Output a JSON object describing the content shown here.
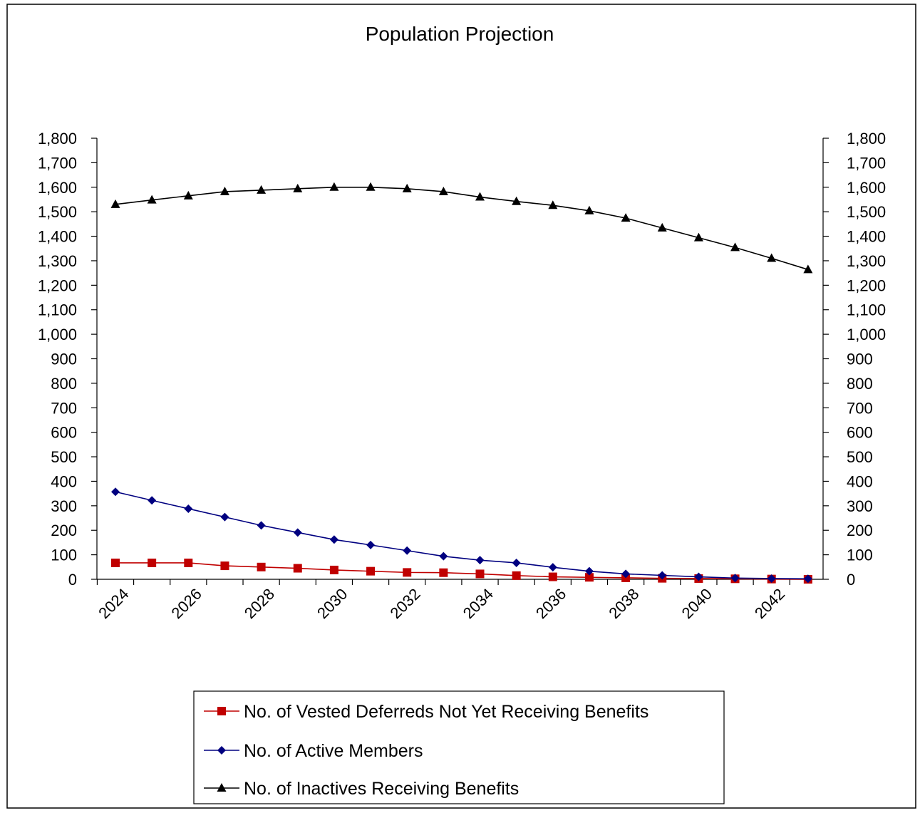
{
  "chart_data": {
    "type": "line",
    "title": "Population Projection",
    "xlabel": "",
    "ylabel": "",
    "x": [
      2024,
      2025,
      2026,
      2027,
      2028,
      2029,
      2030,
      2031,
      2032,
      2033,
      2034,
      2035,
      2036,
      2037,
      2038,
      2039,
      2040,
      2041,
      2042,
      2043
    ],
    "x_tick_labels": [
      "2024",
      "2026",
      "2028",
      "2030",
      "2032",
      "2034",
      "2036",
      "2038",
      "2040",
      "2042"
    ],
    "ylim": [
      0,
      1800
    ],
    "y_tick_values": [
      0,
      100,
      200,
      300,
      400,
      500,
      600,
      700,
      800,
      900,
      1000,
      1100,
      1200,
      1300,
      1400,
      1500,
      1600,
      1700,
      1800
    ],
    "y_tick_labels": [
      "0",
      "100",
      "200",
      "300",
      "400",
      "500",
      "600",
      "700",
      "800",
      "900",
      "1,000",
      "1,100",
      "1,200",
      "1,300",
      "1,400",
      "1,500",
      "1,600",
      "1,700",
      "1,800"
    ],
    "secondary_axis": true,
    "grid": false,
    "legend_position": "bottom",
    "series": [
      {
        "name": "No. of Vested Deferreds Not Yet Receiving Benefits",
        "color": "#C00000",
        "marker": "square",
        "values": [
          67,
          67,
          67,
          55,
          50,
          45,
          38,
          33,
          28,
          27,
          22,
          15,
          10,
          8,
          6,
          4,
          3,
          2,
          1,
          0
        ]
      },
      {
        "name": "No. of  Active Members",
        "color": "#000080",
        "marker": "diamond",
        "values": [
          357,
          322,
          288,
          254,
          220,
          191,
          162,
          140,
          117,
          94,
          78,
          67,
          49,
          33,
          22,
          16,
          10,
          5,
          3,
          2
        ]
      },
      {
        "name": "No. of  Inactives Receiving Benefits",
        "color": "#000000",
        "marker": "triangle",
        "values": [
          1530,
          1548,
          1565,
          1582,
          1588,
          1594,
          1600,
          1600,
          1594,
          1582,
          1560,
          1542,
          1526,
          1504,
          1474,
          1434,
          1394,
          1354,
          1310,
          1264
        ]
      }
    ]
  }
}
